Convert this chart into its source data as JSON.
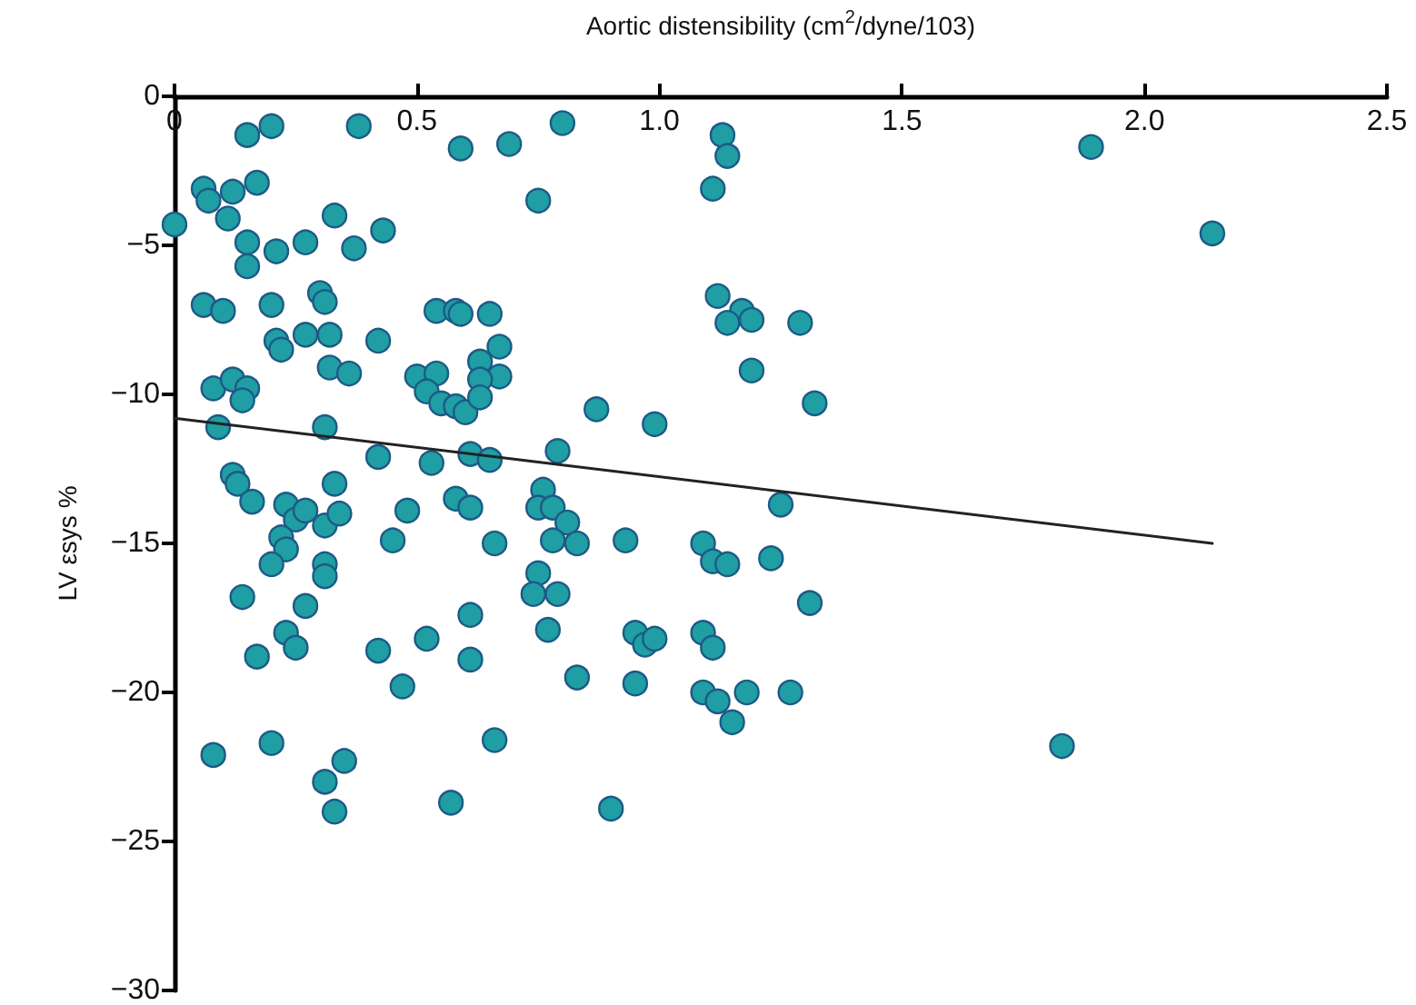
{
  "chart_data": {
    "type": "scatter",
    "xlabel": "Aortic distensibility (cm$^{2}$/dyne/103)",
    "ylabel": "LV εsys %",
    "xlim": [
      0,
      2.5
    ],
    "xticks": [
      0,
      0.5,
      {
        "value": 1,
        "label": "1.0"
      },
      1.5,
      {
        "value": 2,
        "label": "2.0"
      },
      2.5
    ],
    "ylim": [
      -30,
      0
    ],
    "yticks": [
      {
        "value": -30,
        "label": "−30"
      },
      {
        "value": -25,
        "label": "−25"
      },
      {
        "value": -20,
        "label": "−20"
      },
      {
        "value": -15,
        "label": "−15"
      },
      {
        "value": -10,
        "label": "−10"
      },
      {
        "value": -5,
        "label": "−5"
      },
      0
    ],
    "grid": false,
    "marker": "circle",
    "series": [
      {
        "color": "#1f9ea3",
        "x": [
          0.15,
          0.2,
          0.38,
          0.59,
          0.69,
          0.8,
          0.0,
          0.06,
          0.07,
          0.12,
          0.17,
          0.11,
          0.33,
          0.43,
          0.15,
          0.21,
          0.27,
          0.37,
          0.15,
          0.06,
          0.1,
          0.2,
          0.3,
          0.31,
          0.54,
          0.58,
          0.21,
          0.22,
          0.27,
          0.32,
          0.42,
          0.32,
          0.36,
          0.08,
          0.12,
          0.15,
          0.14,
          0.5,
          0.54,
          0.52,
          0.55,
          0.58,
          0.6,
          0.09,
          0.31,
          0.42,
          0.53,
          0.12,
          0.13,
          0.33,
          0.16,
          0.23,
          0.25,
          0.27,
          0.31,
          0.34,
          0.48,
          0.58,
          0.22,
          0.45,
          0.23,
          0.2,
          0.31,
          0.31,
          0.14,
          0.27,
          0.23,
          0.25,
          0.17,
          0.42,
          0.52,
          0.61,
          0.61,
          0.47,
          0.08,
          0.2,
          0.35,
          0.31,
          0.33,
          0.57,
          1.13,
          1.14,
          1.11,
          0.75,
          1.12,
          1.17,
          1.19,
          1.14,
          1.29,
          0.59,
          0.65,
          0.67,
          0.63,
          0.67,
          0.63,
          0.63,
          1.19,
          1.32,
          0.87,
          0.99,
          0.61,
          0.65,
          0.79,
          0.61,
          0.76,
          0.75,
          0.78,
          0.81,
          1.25,
          0.66,
          0.78,
          0.83,
          0.93,
          1.09,
          1.11,
          1.14,
          1.23,
          1.31,
          0.75,
          0.74,
          0.79,
          0.77,
          0.95,
          0.97,
          0.99,
          1.09,
          1.11,
          0.83,
          0.95,
          1.09,
          1.12,
          1.15,
          1.18,
          1.27,
          0.66,
          0.9,
          1.89,
          2.14,
          1.83
        ],
        "values": [
          -1.3,
          -1.0,
          -1.0,
          -1.75,
          -1.6,
          -0.9,
          -4.3,
          -3.1,
          -3.5,
          -3.2,
          -2.9,
          -4.1,
          -4.0,
          -4.5,
          -4.9,
          -5.2,
          -4.9,
          -5.1,
          -5.7,
          -7.0,
          -7.2,
          -7.0,
          -6.6,
          -6.9,
          -7.2,
          -7.2,
          -8.2,
          -8.5,
          -8.0,
          -8.0,
          -8.2,
          -9.1,
          -9.3,
          -9.8,
          -9.5,
          -9.8,
          -10.2,
          -9.4,
          -9.3,
          -9.9,
          -10.3,
          -10.4,
          -10.6,
          -11.1,
          -11.1,
          -12.1,
          -12.3,
          -12.7,
          -13.0,
          -13.0,
          -13.6,
          -13.7,
          -14.2,
          -13.9,
          -14.4,
          -14.0,
          -13.9,
          -13.5,
          -14.8,
          -14.9,
          -15.2,
          -15.7,
          -15.7,
          -16.1,
          -16.8,
          -17.1,
          -18.0,
          -18.5,
          -18.8,
          -18.6,
          -18.2,
          -17.4,
          -18.9,
          -19.8,
          -22.1,
          -21.7,
          -22.3,
          -23.0,
          -24.0,
          -23.7,
          -1.3,
          -2.0,
          -3.1,
          -3.5,
          -6.7,
          -7.2,
          -7.5,
          -7.6,
          -7.6,
          -7.3,
          -7.3,
          -8.4,
          -8.9,
          -9.4,
          -9.5,
          -10.1,
          -9.2,
          -10.3,
          -10.5,
          -11.0,
          -12.0,
          -12.2,
          -11.9,
          -13.8,
          -13.2,
          -13.8,
          -13.8,
          -14.3,
          -13.7,
          -15.0,
          -14.9,
          -15.0,
          -14.9,
          -15.0,
          -15.6,
          -15.7,
          -15.5,
          -17.0,
          -16.0,
          -16.7,
          -16.7,
          -17.9,
          -18.0,
          -18.4,
          -18.2,
          -18.0,
          -18.5,
          -19.5,
          -19.7,
          -20.0,
          -20.3,
          -21.0,
          -20.0,
          -20.0,
          -21.6,
          -23.9,
          -1.7,
          -4.6,
          -21.8
        ]
      },
      {
        "type": "line",
        "color": "#222222",
        "marker": "none",
        "x": [
          0,
          2.14
        ],
        "values": [
          -10.8,
          -15.0
        ]
      }
    ]
  }
}
